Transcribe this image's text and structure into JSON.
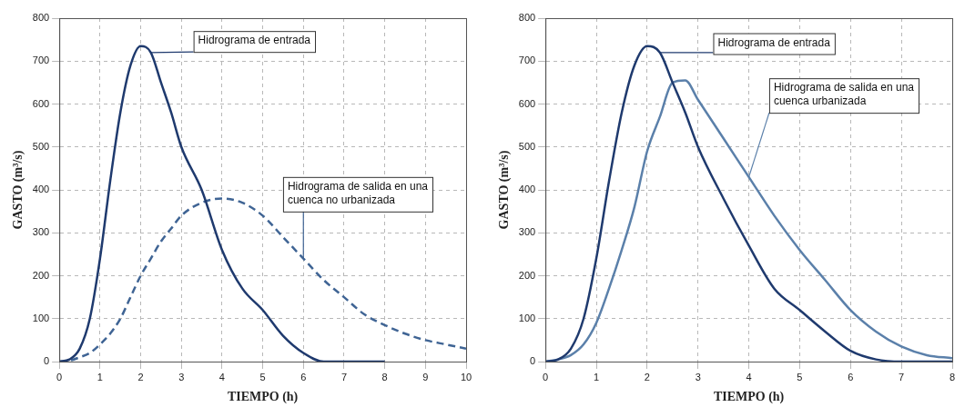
{
  "chart_data": [
    {
      "type": "line",
      "x_label": "TIEMPO (h)",
      "y_label": "GASTO (m³/s)",
      "x": [
        0,
        0.25,
        0.5,
        0.75,
        1,
        1.25,
        1.5,
        1.75,
        2,
        2.25,
        2.5,
        2.75,
        3,
        3.5,
        4,
        4.5,
        5,
        5.5,
        6,
        6.5,
        7,
        7.5,
        8,
        8.5,
        9,
        9.5,
        10
      ],
      "xlim": [
        0,
        10
      ],
      "xticks": [
        0,
        1,
        2,
        3,
        4,
        5,
        6,
        7,
        8,
        9,
        10
      ],
      "ylim": [
        0,
        800
      ],
      "yticks": [
        0,
        100,
        200,
        300,
        400,
        500,
        600,
        700,
        800
      ],
      "grid": true,
      "series": [
        {
          "name": "Hidrograma de entrada",
          "color": "#1f3a6e",
          "line_style": "solid",
          "values": [
            0,
            5,
            30,
            100,
            240,
            420,
            580,
            690,
            735,
            720,
            650,
            580,
            500,
            400,
            260,
            170,
            120,
            60,
            20,
            0,
            0,
            0,
            0,
            null,
            null,
            null,
            null
          ]
        },
        {
          "name": "Hidrograma de salida en una cuenca no urbanizada",
          "color": "#3f6494",
          "line_style": "dashed",
          "values": [
            0,
            2,
            10,
            20,
            40,
            65,
            100,
            150,
            200,
            240,
            280,
            310,
            340,
            370,
            380,
            370,
            340,
            290,
            240,
            190,
            150,
            110,
            85,
            65,
            50,
            40,
            30
          ]
        }
      ]
    },
    {
      "type": "line",
      "x_label": "TIEMPO (h)",
      "y_label": "GASTO (m³/s)",
      "x": [
        0,
        0.25,
        0.5,
        0.75,
        1,
        1.25,
        1.5,
        1.75,
        2,
        2.25,
        2.5,
        2.75,
        3,
        3.5,
        4,
        4.5,
        5,
        5.5,
        6,
        6.5,
        7,
        7.5,
        8
      ],
      "xlim": [
        0,
        8
      ],
      "xticks": [
        0,
        1,
        2,
        3,
        4,
        5,
        6,
        7,
        8
      ],
      "ylim": [
        0,
        800
      ],
      "yticks": [
        0,
        100,
        200,
        300,
        400,
        500,
        600,
        700,
        800
      ],
      "grid": true,
      "series": [
        {
          "name": "Hidrograma de entrada",
          "color": "#1f3a6e",
          "line_style": "solid",
          "values": [
            0,
            5,
            30,
            100,
            240,
            420,
            580,
            690,
            735,
            720,
            650,
            580,
            500,
            380,
            270,
            170,
            120,
            70,
            25,
            5,
            0,
            0,
            0
          ]
        },
        {
          "name": "Hidrograma de salida en una cuenca urbanizada",
          "color": "#5b80aa",
          "line_style": "solid",
          "values": [
            0,
            5,
            15,
            40,
            90,
            170,
            260,
            360,
            490,
            570,
            650,
            655,
            610,
            520,
            430,
            340,
            260,
            190,
            120,
            70,
            35,
            15,
            8
          ]
        }
      ]
    }
  ]
}
